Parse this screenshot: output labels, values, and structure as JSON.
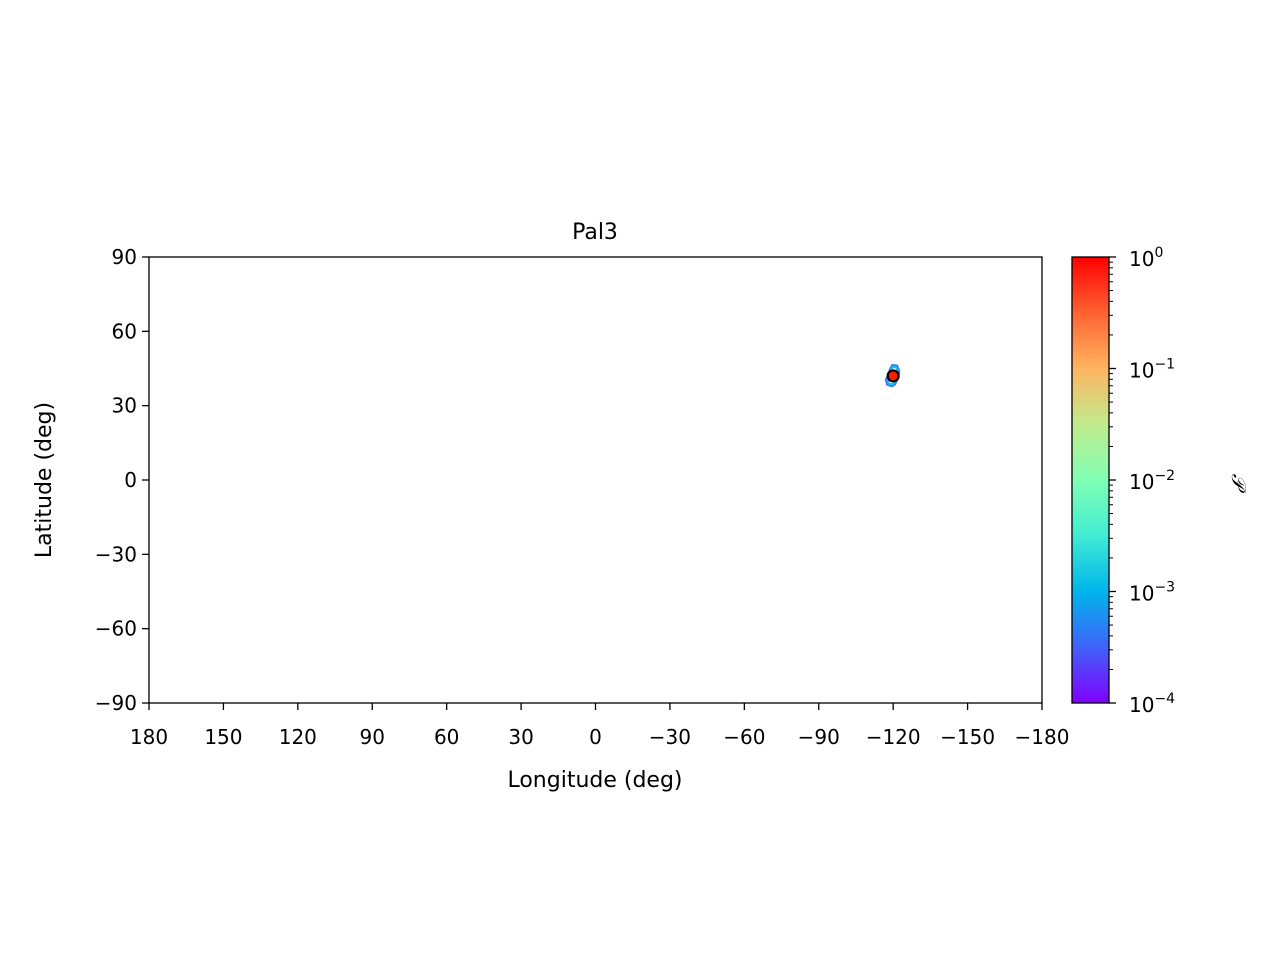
{
  "chart_data": {
    "type": "scatter",
    "title": "Pal3",
    "xlabel": "Longitude (deg)",
    "ylabel": "Latitude (deg)",
    "xlim": [
      180,
      -180
    ],
    "ylim": [
      -90,
      90
    ],
    "x_direction": "reversed",
    "grid": false,
    "xticks": [
      180,
      150,
      120,
      90,
      60,
      30,
      0,
      -30,
      -60,
      -90,
      -120,
      -150,
      -180
    ],
    "xtick_labels": [
      "180",
      "150",
      "120",
      "90",
      "60",
      "30",
      "0",
      "−30",
      "−60",
      "−90",
      "−120",
      "−150",
      "−180"
    ],
    "yticks": [
      90,
      60,
      30,
      0,
      -30,
      -60,
      -90
    ],
    "ytick_labels": [
      "90",
      "60",
      "30",
      "0",
      "−30",
      "−60",
      "−90"
    ],
    "probability_region": {
      "center": {
        "lon": -120,
        "lat": 42
      },
      "contours": [
        {
          "level": 0.0003,
          "color": "#3a7bf4",
          "points": [
            [
              -117,
              40.5
            ],
            [
              -117.6,
              38.4
            ],
            [
              -119.5,
              37.8
            ],
            [
              -120.8,
              38.6
            ],
            [
              -121.8,
              41
            ],
            [
              -122.5,
              43.8
            ],
            [
              -121.6,
              46.2
            ],
            [
              -119.6,
              46.4
            ],
            [
              -118.6,
              44.5
            ],
            [
              -118.1,
              42.5
            ]
          ]
        },
        {
          "level": 0.001,
          "color": "#12c2e8",
          "points": [
            [
              -117.8,
              40.6
            ],
            [
              -118.2,
              39
            ],
            [
              -119.6,
              38.6
            ],
            [
              -120.5,
              39.4
            ],
            [
              -121.3,
              41.4
            ],
            [
              -121.8,
              43.7
            ],
            [
              -121.2,
              45.5
            ],
            [
              -119.9,
              45.7
            ],
            [
              -119.1,
              44.2
            ],
            [
              -118.6,
              42.5
            ]
          ]
        },
        {
          "level": 0.01,
          "color": "#7dfba0",
          "points": [
            [
              -118.9,
              41.5
            ],
            [
              -119.3,
              40.3
            ],
            [
              -120.3,
              40.2
            ],
            [
              -121,
              41.3
            ],
            [
              -121.1,
              42.8
            ],
            [
              -120.6,
              43.8
            ],
            [
              -119.7,
              43.6
            ],
            [
              -119.1,
              42.6
            ]
          ]
        }
      ],
      "peak": {
        "lon": -120,
        "lat": 42,
        "color": "#ff1a00",
        "edge": "#000000"
      }
    },
    "colorbar": {
      "label": "𝒫",
      "scale": "log",
      "range": [
        0.0001,
        1
      ],
      "cmap": "rainbow",
      "ticks": [
        1,
        0.1,
        0.01,
        0.001,
        0.0001
      ],
      "tick_bases": [
        "10",
        "10",
        "10",
        "10",
        "10"
      ],
      "tick_exponents": [
        "0",
        "−1",
        "−2",
        "−3",
        "−4"
      ]
    }
  }
}
